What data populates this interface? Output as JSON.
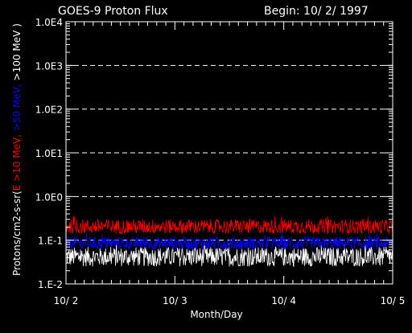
{
  "chart_data": {
    "type": "line",
    "title": "GOES-9 Proton Flux",
    "begin_label": "Begin: 10/ 2/ 1997",
    "ylabel_parts": [
      {
        "text": "Protons/cm2-s-sr(",
        "color": "#ffffff"
      },
      {
        "text": "E >10 MeV,",
        "color": "#ff0000"
      },
      {
        "text": " ",
        "color": "#ffffff"
      },
      {
        "text": ">50 MeV,",
        "color": "#0000ff"
      },
      {
        "text": " >100 MeV )",
        "color": "#ffffff"
      }
    ],
    "xlabel": "Month/Day",
    "x_ticks": [
      "10/ 2",
      "10/ 3",
      "10/ 4",
      "10/ 5"
    ],
    "xlim": [
      0,
      3
    ],
    "x_unit": "days since 10/ 2",
    "y_scale": "log",
    "ylim": [
      0.01,
      10000
    ],
    "y_ticks": [
      {
        "value": 0.01,
        "label": "1.E-2"
      },
      {
        "value": 0.1,
        "label": "1.E-1"
      },
      {
        "value": 1,
        "label": "1.0E0"
      },
      {
        "value": 10,
        "label": "1.0E1"
      },
      {
        "value": 100,
        "label": "1.0E2"
      },
      {
        "value": 1000,
        "label": "1.0E3"
      },
      {
        "value": 10000,
        "label": "1.0E4"
      }
    ],
    "gridlines": [
      0.1,
      1,
      10,
      100,
      1000
    ],
    "grid": "dashed horizontal",
    "series": [
      {
        "name": "E >10 MeV",
        "color": "#ff0000",
        "typical_range": [
          0.14,
          0.3
        ]
      },
      {
        "name": ">50 MeV",
        "color": "#0000ff",
        "typical_range": [
          0.06,
          0.12
        ]
      },
      {
        "name": ">100 MeV",
        "color": "#ffffff",
        "typical_range": [
          0.025,
          0.07
        ]
      }
    ]
  }
}
